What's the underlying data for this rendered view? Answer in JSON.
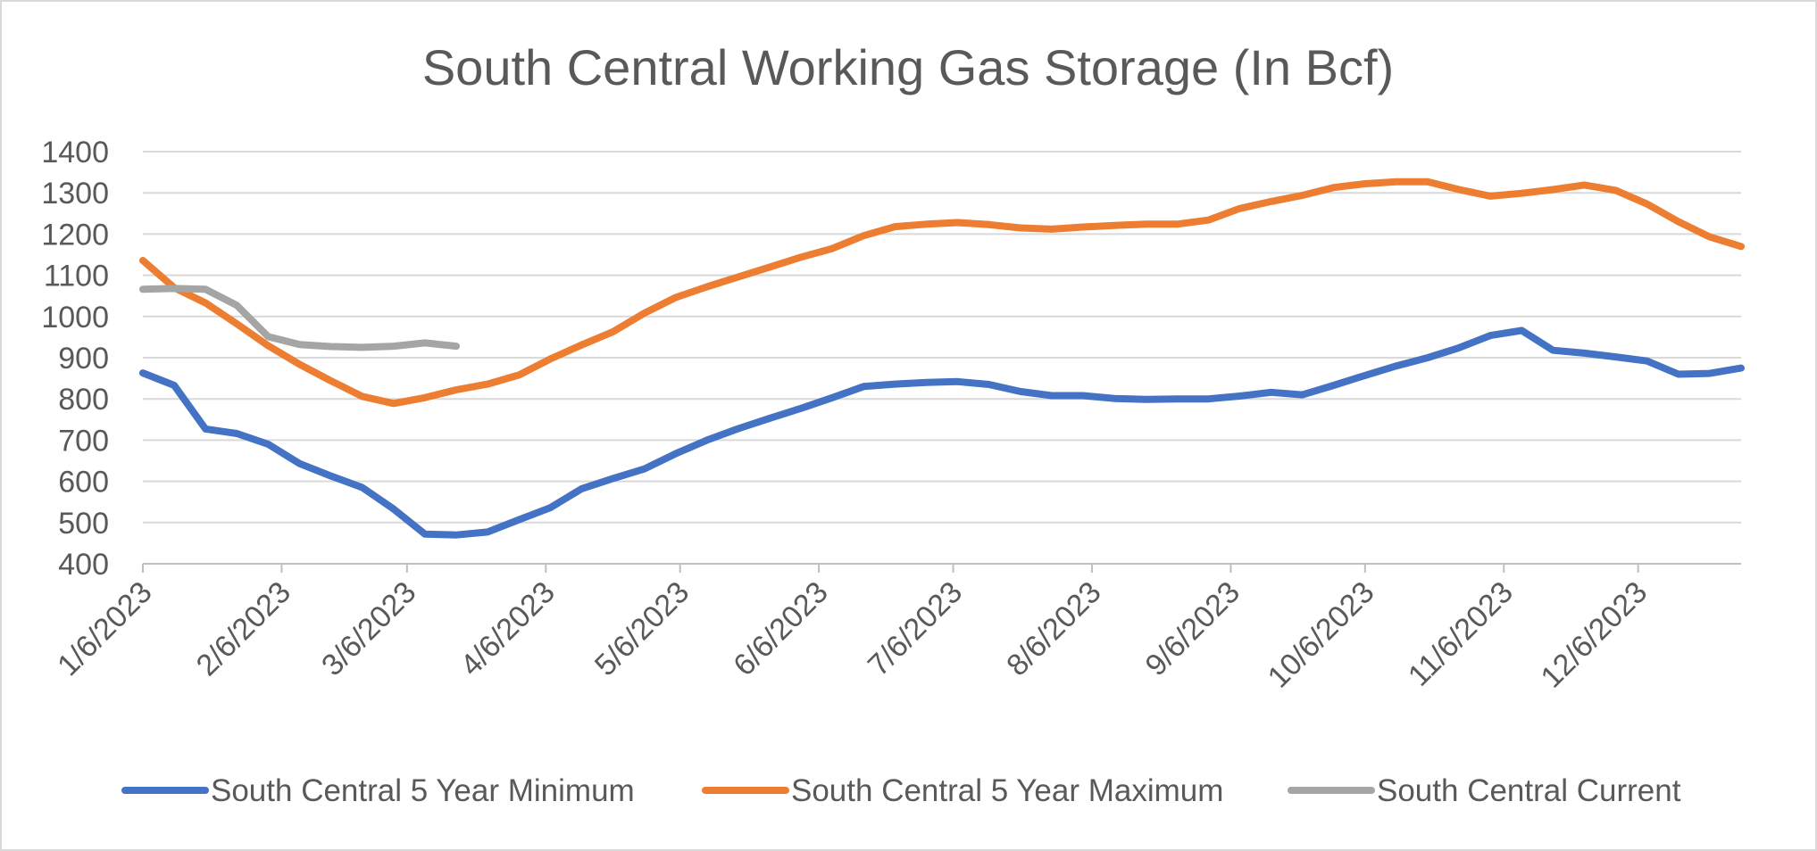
{
  "chart_data": {
    "type": "line",
    "title": "South Central Working Gas Storage (In Bcf)",
    "xlabel": "",
    "ylabel": "",
    "ylim": [
      400,
      1400
    ],
    "yticks": [
      "1400",
      "1300",
      "1200",
      "1100",
      "1000",
      "900",
      "800",
      "700",
      "600",
      "500",
      "400"
    ],
    "xlim": [
      "2023-01-06",
      "2023-12-29"
    ],
    "xticks": [
      {
        "label": "1/6/2023",
        "date": "2023-01-06"
      },
      {
        "label": "2/6/2023",
        "date": "2023-02-06"
      },
      {
        "label": "3/6/2023",
        "date": "2023-03-06"
      },
      {
        "label": "4/6/2023",
        "date": "2023-04-06"
      },
      {
        "label": "5/6/2023",
        "date": "2023-05-06"
      },
      {
        "label": "6/6/2023",
        "date": "2023-06-06"
      },
      {
        "label": "7/6/2023",
        "date": "2023-07-06"
      },
      {
        "label": "8/6/2023",
        "date": "2023-08-06"
      },
      {
        "label": "9/6/2023",
        "date": "2023-09-06"
      },
      {
        "label": "10/6/2023",
        "date": "2023-10-06"
      },
      {
        "label": "11/6/2023",
        "date": "2023-11-06"
      },
      {
        "label": "12/6/2023",
        "date": "2023-12-06"
      }
    ],
    "grid": true,
    "legend_position": "bottom",
    "series": [
      {
        "name": "South Central 5 Year Minimum",
        "color": "#4472c4",
        "points": [
          [
            "2023-01-06",
            863
          ],
          [
            "2023-01-13",
            833
          ],
          [
            "2023-01-20",
            727
          ],
          [
            "2023-01-27",
            716
          ],
          [
            "2023-02-03",
            690
          ],
          [
            "2023-02-10",
            643
          ],
          [
            "2023-02-17",
            613
          ],
          [
            "2023-02-24",
            585
          ],
          [
            "2023-03-03",
            533
          ],
          [
            "2023-03-10",
            472
          ],
          [
            "2023-03-17",
            470
          ],
          [
            "2023-03-24",
            477
          ],
          [
            "2023-03-31",
            507
          ],
          [
            "2023-04-07",
            536
          ],
          [
            "2023-04-14",
            582
          ],
          [
            "2023-04-21",
            607
          ],
          [
            "2023-04-28",
            630
          ],
          [
            "2023-05-05",
            667
          ],
          [
            "2023-05-12",
            700
          ],
          [
            "2023-05-19",
            728
          ],
          [
            "2023-05-26",
            753
          ],
          [
            "2023-06-02",
            777
          ],
          [
            "2023-06-09",
            803
          ],
          [
            "2023-06-16",
            830
          ],
          [
            "2023-06-23",
            836
          ],
          [
            "2023-06-30",
            840
          ],
          [
            "2023-07-07",
            842
          ],
          [
            "2023-07-14",
            835
          ],
          [
            "2023-07-21",
            818
          ],
          [
            "2023-07-28",
            808
          ],
          [
            "2023-08-04",
            808
          ],
          [
            "2023-08-11",
            801
          ],
          [
            "2023-08-18",
            799
          ],
          [
            "2023-08-25",
            800
          ],
          [
            "2023-09-01",
            800
          ],
          [
            "2023-09-08",
            807
          ],
          [
            "2023-09-15",
            816
          ],
          [
            "2023-09-22",
            810
          ],
          [
            "2023-09-29",
            833
          ],
          [
            "2023-10-06",
            857
          ],
          [
            "2023-10-13",
            880
          ],
          [
            "2023-10-20",
            900
          ],
          [
            "2023-10-27",
            924
          ],
          [
            "2023-11-03",
            954
          ],
          [
            "2023-11-10",
            966
          ],
          [
            "2023-11-17",
            918
          ],
          [
            "2023-11-24",
            911
          ],
          [
            "2023-12-01",
            902
          ],
          [
            "2023-12-08",
            892
          ],
          [
            "2023-12-15",
            860
          ],
          [
            "2023-12-22",
            862
          ],
          [
            "2023-12-29",
            875
          ]
        ]
      },
      {
        "name": "South Central 5 Year Maximum",
        "color": "#ed7d31",
        "points": [
          [
            "2023-01-06",
            1136
          ],
          [
            "2023-01-13",
            1070
          ],
          [
            "2023-01-20",
            1033
          ],
          [
            "2023-01-27",
            982
          ],
          [
            "2023-02-03",
            929
          ],
          [
            "2023-02-10",
            884
          ],
          [
            "2023-02-17",
            844
          ],
          [
            "2023-02-24",
            806
          ],
          [
            "2023-03-03",
            789
          ],
          [
            "2023-03-10",
            803
          ],
          [
            "2023-03-17",
            822
          ],
          [
            "2023-03-24",
            836
          ],
          [
            "2023-03-31",
            858
          ],
          [
            "2023-04-07",
            897
          ],
          [
            "2023-04-14",
            931
          ],
          [
            "2023-04-21",
            963
          ],
          [
            "2023-04-28",
            1008
          ],
          [
            "2023-05-05",
            1046
          ],
          [
            "2023-05-12",
            1072
          ],
          [
            "2023-05-19",
            1096
          ],
          [
            "2023-05-26",
            1120
          ],
          [
            "2023-06-02",
            1144
          ],
          [
            "2023-06-09",
            1165
          ],
          [
            "2023-06-16",
            1196
          ],
          [
            "2023-06-23",
            1218
          ],
          [
            "2023-06-30",
            1224
          ],
          [
            "2023-07-07",
            1228
          ],
          [
            "2023-07-14",
            1223
          ],
          [
            "2023-07-21",
            1215
          ],
          [
            "2023-07-28",
            1212
          ],
          [
            "2023-08-04",
            1217
          ],
          [
            "2023-08-11",
            1221
          ],
          [
            "2023-08-18",
            1224
          ],
          [
            "2023-08-25",
            1224
          ],
          [
            "2023-09-01",
            1234
          ],
          [
            "2023-09-08",
            1262
          ],
          [
            "2023-09-15",
            1279
          ],
          [
            "2023-09-22",
            1294
          ],
          [
            "2023-09-29",
            1313
          ],
          [
            "2023-10-06",
            1322
          ],
          [
            "2023-10-13",
            1327
          ],
          [
            "2023-10-20",
            1327
          ],
          [
            "2023-10-27",
            1308
          ],
          [
            "2023-11-03",
            1292
          ],
          [
            "2023-11-10",
            1299
          ],
          [
            "2023-11-17",
            1308
          ],
          [
            "2023-11-24",
            1319
          ],
          [
            "2023-12-01",
            1306
          ],
          [
            "2023-12-08",
            1273
          ],
          [
            "2023-12-15",
            1230
          ],
          [
            "2023-12-22",
            1193
          ],
          [
            "2023-12-29",
            1170
          ]
        ]
      },
      {
        "name": "South Central Current",
        "color": "#a5a5a5",
        "points": [
          [
            "2023-01-06",
            1066
          ],
          [
            "2023-01-13",
            1068
          ],
          [
            "2023-01-20",
            1066
          ],
          [
            "2023-01-27",
            1027
          ],
          [
            "2023-02-03",
            951
          ],
          [
            "2023-02-10",
            932
          ],
          [
            "2023-02-17",
            927
          ],
          [
            "2023-02-24",
            925
          ],
          [
            "2023-03-03",
            928
          ],
          [
            "2023-03-10",
            936
          ],
          [
            "2023-03-17",
            928
          ]
        ]
      }
    ]
  }
}
